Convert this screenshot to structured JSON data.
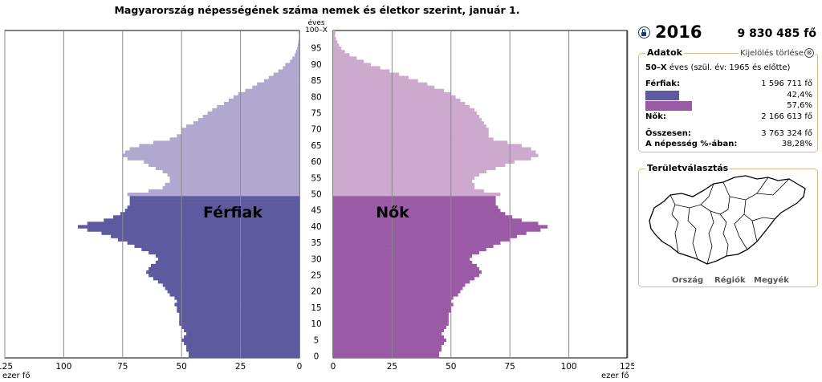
{
  "chart_data": {
    "type": "bar",
    "orientation": "horizontal",
    "title": "Magyarország népességének száma nemek és életkor szerint, január 1.",
    "x_unit": "ezer fő",
    "age_unit": "éves",
    "top_age_label": "100–X",
    "age_ticks": [
      0,
      5,
      10,
      15,
      20,
      25,
      30,
      35,
      40,
      45,
      50,
      55,
      60,
      65,
      70,
      75,
      80,
      85,
      90,
      95
    ],
    "x_ticks": [
      125,
      100,
      75,
      50,
      25,
      0
    ],
    "xlim": [
      0,
      125
    ],
    "grid": true,
    "highlight_from_age": 50,
    "series": [
      {
        "name": "Férfiak",
        "label": "Férfiak",
        "color_selected": "#b0a8cf",
        "color_other": "#5e5aa0",
        "values": [
          47,
          47,
          48,
          48,
          49,
          50,
          49,
          48,
          49,
          50,
          51,
          51,
          51,
          51,
          52,
          52,
          53,
          52,
          53,
          55,
          56,
          57,
          58,
          60,
          62,
          64,
          65,
          64,
          63,
          61,
          60,
          61,
          64,
          67,
          70,
          73,
          77,
          80,
          84,
          90,
          94,
          90,
          83,
          79,
          76,
          74,
          73,
          72,
          72,
          72,
          73,
          64,
          58,
          57,
          55,
          55,
          56,
          58,
          61,
          64,
          66,
          73,
          75,
          74,
          72,
          68,
          62,
          55,
          52,
          50,
          50,
          48,
          45,
          43,
          41,
          39,
          37,
          35,
          32,
          30,
          28,
          26,
          23,
          20,
          18,
          15,
          13,
          11,
          9,
          7,
          6,
          4,
          3,
          2,
          1.5,
          1,
          0.7,
          0.5,
          0.3,
          0.2,
          0.4
        ]
      },
      {
        "name": "Nők",
        "label": "Nők",
        "color_selected": "#cda9cd",
        "color_other": "#9a5aa6",
        "values": [
          45,
          45,
          46,
          46,
          47,
          48,
          47,
          46,
          47,
          48,
          49,
          49,
          49,
          49,
          50,
          50,
          51,
          50,
          51,
          53,
          54,
          55,
          56,
          58,
          60,
          62,
          63,
          62,
          61,
          59,
          58,
          59,
          62,
          65,
          68,
          71,
          75,
          78,
          82,
          88,
          91,
          87,
          80,
          76,
          73,
          71,
          70,
          69,
          69,
          69,
          71,
          64,
          60,
          60,
          59,
          60,
          62,
          65,
          69,
          73,
          77,
          84,
          87,
          86,
          84,
          80,
          74,
          68,
          66,
          66,
          66,
          65,
          64,
          63,
          62,
          61,
          60,
          58,
          56,
          54,
          52,
          50,
          47,
          43,
          40,
          36,
          32,
          28,
          24,
          20,
          16,
          13,
          10,
          7,
          5,
          3.5,
          2.5,
          1.8,
          1.2,
          0.8,
          1
        ]
      }
    ]
  },
  "info": {
    "year": "2016",
    "total_population": "9 830 485 fő",
    "data_title": "Adatok",
    "clear_selection": "Kijelölés törlése",
    "clear_icon": "⊗",
    "selection_label": "50–X",
    "selection_desc": "éves (szül. év: 1965 és előtte)",
    "male_label": "Férfiak:",
    "male_value": "1 596 711 fő",
    "male_percent": "42,4%",
    "female_percent": "57,6%",
    "male_share": 0.424,
    "female_share": 0.576,
    "male_bar_color": "#5e5aa0",
    "female_bar_color": "#9a5aa6",
    "female_label": "Nők:",
    "female_value": "2 166 613 fő",
    "total_label": "Összesen:",
    "total_value": "3 763 324 fő",
    "share_label": "A népesség %-ában:",
    "share_value": "38,28%"
  },
  "territory": {
    "title": "Területválasztás",
    "links": [
      "Ország",
      "Régiók",
      "Megyék"
    ]
  }
}
